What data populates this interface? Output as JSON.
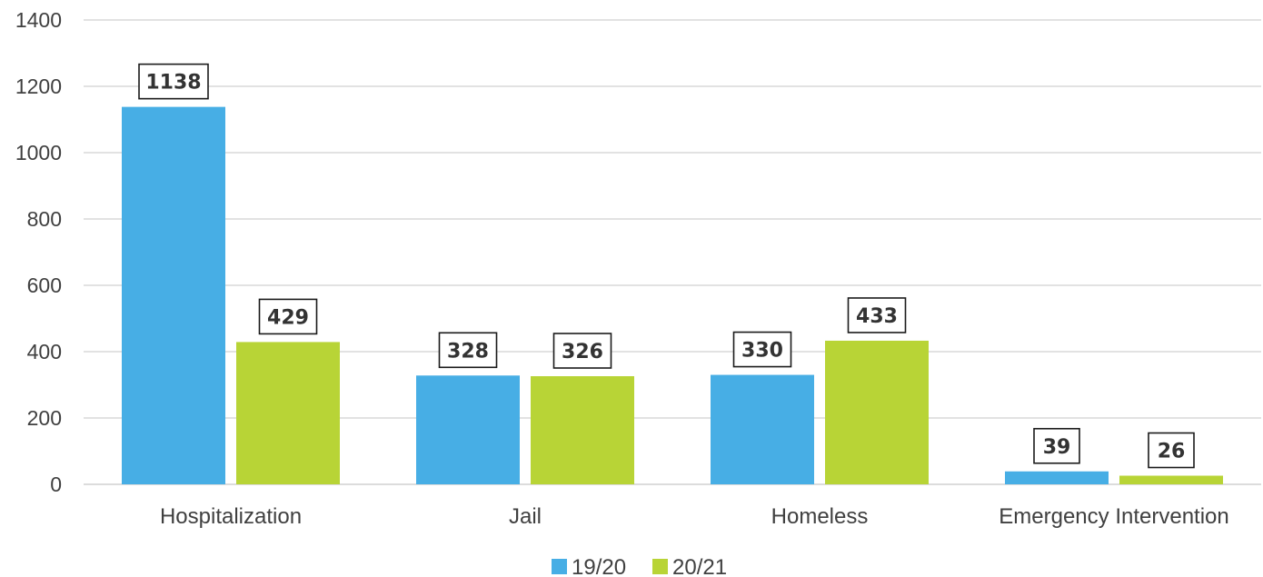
{
  "chart_data": {
    "type": "bar",
    "categories": [
      "Hospitalization",
      "Jail",
      "Homeless",
      "Emergency Intervention"
    ],
    "series": [
      {
        "name": "19/20",
        "values": [
          1138,
          328,
          330,
          39
        ],
        "color": "#47aee5"
      },
      {
        "name": "20/21",
        "values": [
          429,
          326,
          433,
          26
        ],
        "color": "#b8d436"
      }
    ],
    "ylim": [
      0,
      1400
    ],
    "yticks": [
      0,
      200,
      400,
      600,
      800,
      1000,
      1200,
      1400
    ],
    "grid": true,
    "legend_position": "bottom-center",
    "title": "",
    "xlabel": "",
    "ylabel": ""
  }
}
